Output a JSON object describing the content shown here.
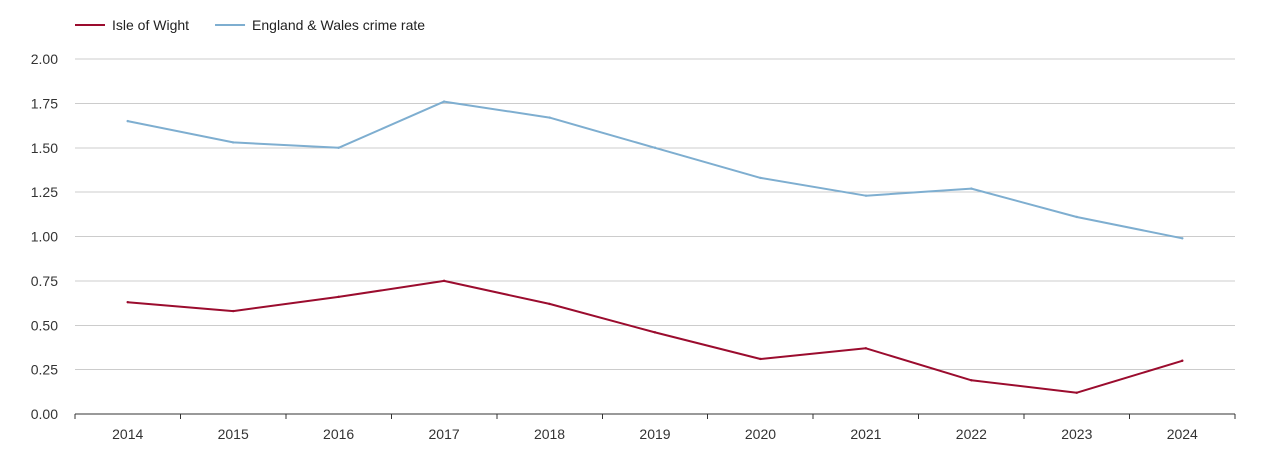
{
  "chart_data": {
    "type": "line",
    "title": "",
    "xlabel": "",
    "ylabel": "",
    "categories": [
      "2014",
      "2015",
      "2016",
      "2017",
      "2018",
      "2019",
      "2020",
      "2021",
      "2022",
      "2023",
      "2024"
    ],
    "series": [
      {
        "name": "Isle of Wight",
        "color": "#9b0c2e",
        "values": [
          0.63,
          0.58,
          0.66,
          0.75,
          0.62,
          0.46,
          0.31,
          0.37,
          0.19,
          0.12,
          0.3
        ]
      },
      {
        "name": "England & Wales crime rate",
        "color": "#7eaed0",
        "values": [
          1.65,
          1.53,
          1.5,
          1.76,
          1.67,
          1.5,
          1.33,
          1.23,
          1.27,
          1.11,
          0.99
        ]
      }
    ],
    "ylim": [
      0,
      2.0
    ],
    "yticks": [
      "0.00",
      "0.25",
      "0.50",
      "0.75",
      "1.00",
      "1.25",
      "1.50",
      "1.75",
      "2.00"
    ],
    "grid": true,
    "legend_position": "top-left"
  }
}
